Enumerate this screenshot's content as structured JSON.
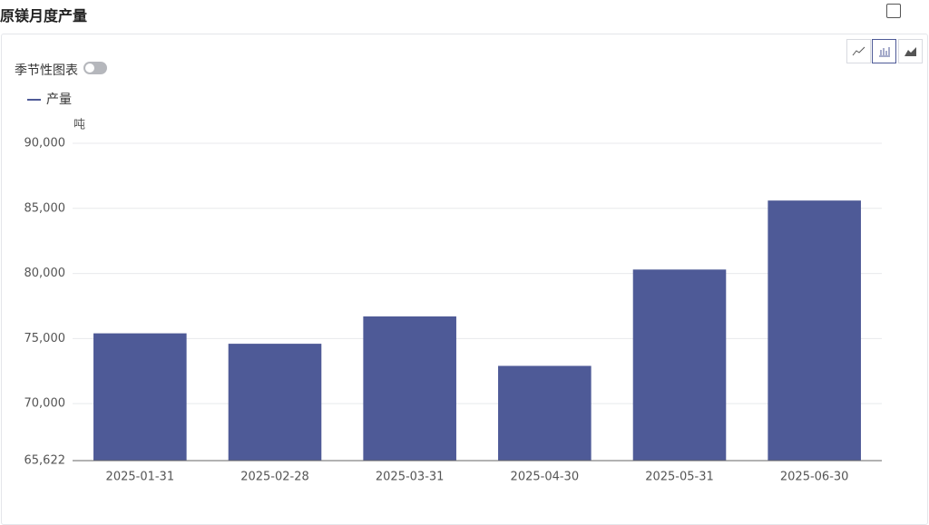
{
  "header": {
    "title": "原镁月度产量"
  },
  "controls": {
    "seasonal_toggle": "季节性图表"
  },
  "chart_data": {
    "type": "bar",
    "unit": "吨",
    "categories": [
      "2025-01-31",
      "2025-02-28",
      "2025-03-31",
      "2025-04-30",
      "2025-05-31",
      "2025-06-30"
    ],
    "series": [
      {
        "name": "产量",
        "color": "#4e5a97",
        "values": [
          75400,
          74600,
          76700,
          72900,
          80300,
          85600
        ]
      }
    ],
    "ylim": [
      65622,
      90000
    ],
    "yticks": [
      {
        "value": 65622,
        "label": "65,622"
      },
      {
        "value": 70000,
        "label": "70,000"
      },
      {
        "value": 75000,
        "label": "75,000"
      },
      {
        "value": 80000,
        "label": "80,000"
      },
      {
        "value": 85000,
        "label": "85,000"
      },
      {
        "value": 90000,
        "label": "90,000"
      }
    ],
    "grid": true
  }
}
